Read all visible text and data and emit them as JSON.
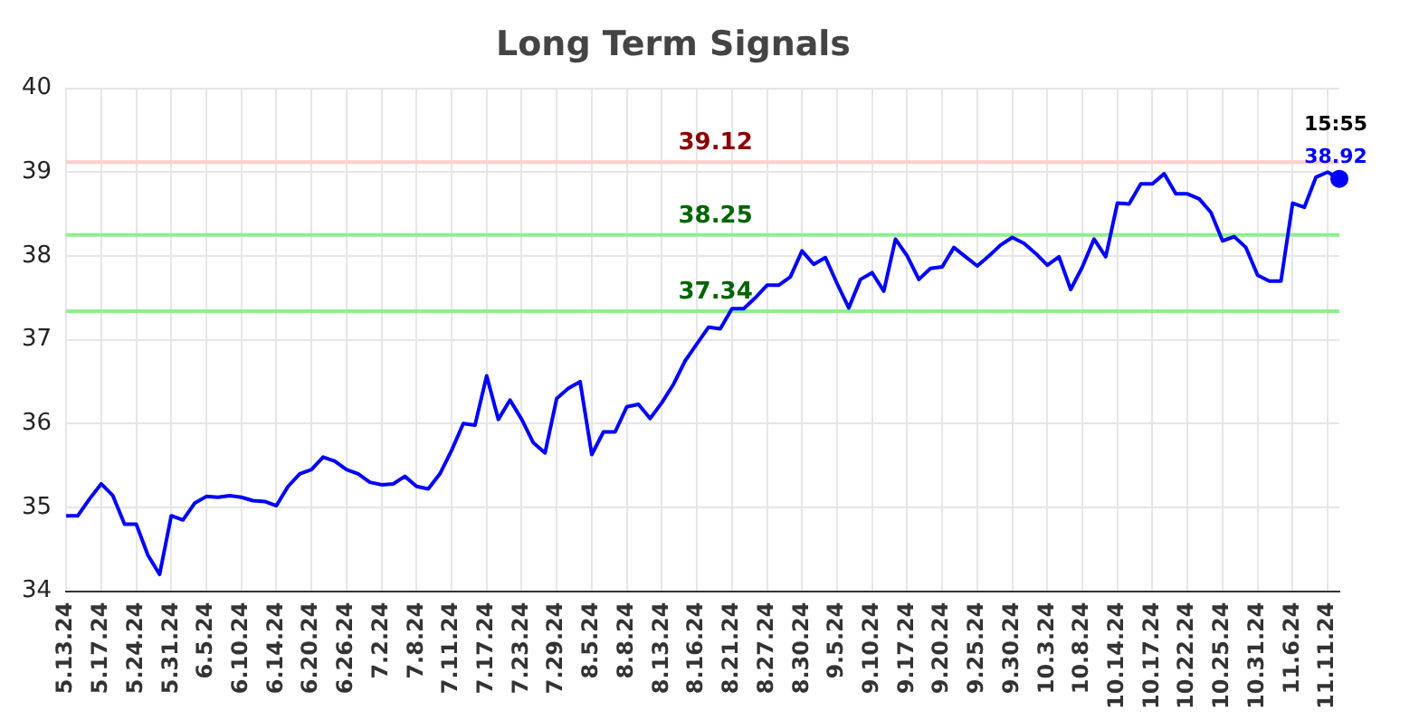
{
  "chart_data": {
    "type": "line",
    "title": "Long Term Signals",
    "categories": [
      "5.13.24",
      null,
      null,
      "5.17.24",
      null,
      null,
      "5.24.24",
      null,
      null,
      "5.31.24",
      null,
      null,
      "6.5.24",
      null,
      null,
      "6.10.24",
      null,
      null,
      "6.14.24",
      null,
      null,
      "6.20.24",
      null,
      null,
      "6.26.24",
      null,
      null,
      "7.2.24",
      null,
      null,
      "7.8.24",
      null,
      null,
      "7.11.24",
      null,
      null,
      "7.17.24",
      null,
      null,
      "7.23.24",
      null,
      null,
      "7.29.24",
      null,
      null,
      "8.5.24",
      null,
      null,
      "8.8.24",
      null,
      null,
      "8.13.24",
      null,
      null,
      "8.16.24",
      null,
      null,
      "8.21.24",
      null,
      null,
      "8.27.24",
      null,
      null,
      "8.30.24",
      null,
      null,
      "9.5.24",
      null,
      null,
      "9.10.24",
      null,
      null,
      "9.17.24",
      null,
      null,
      "9.20.24",
      null,
      null,
      "9.25.24",
      null,
      null,
      "9.30.24",
      null,
      null,
      "10.3.24",
      null,
      null,
      "10.8.24",
      null,
      null,
      "10.14.24",
      null,
      null,
      "10.17.24",
      null,
      null,
      "10.22.24",
      null,
      null,
      "10.25.24",
      null,
      null,
      "10.31.24",
      null,
      null,
      "11.6.24",
      null,
      null,
      "11.11.24",
      null
    ],
    "series": [
      {
        "color": "#0000ff",
        "values": [
          34.9,
          34.9,
          35.1,
          35.28,
          35.14,
          34.8,
          34.8,
          34.43,
          34.2,
          34.9,
          34.85,
          35.05,
          35.13,
          35.12,
          35.14,
          35.12,
          35.08,
          35.07,
          35.02,
          35.25,
          35.4,
          35.45,
          35.6,
          35.55,
          35.45,
          35.4,
          35.3,
          35.27,
          35.28,
          35.37,
          35.25,
          35.22,
          35.4,
          35.68,
          36.0,
          35.98,
          36.57,
          36.05,
          36.28,
          36.05,
          35.77,
          35.65,
          36.3,
          36.42,
          36.5,
          35.63,
          35.9,
          35.9,
          36.2,
          36.23,
          36.06,
          36.25,
          36.47,
          36.75,
          36.95,
          37.15,
          37.13,
          37.37,
          37.37,
          37.5,
          37.65,
          37.65,
          37.75,
          38.06,
          37.9,
          37.98,
          37.67,
          37.38,
          37.72,
          37.8,
          37.58,
          38.2,
          38.0,
          37.72,
          37.85,
          37.87,
          38.1,
          37.99,
          37.88,
          38.0,
          38.13,
          38.22,
          38.15,
          38.03,
          37.89,
          37.99,
          37.6,
          37.87,
          38.2,
          37.99,
          38.63,
          38.62,
          38.86,
          38.86,
          38.98,
          38.74,
          38.74,
          38.68,
          38.52,
          38.18,
          38.23,
          38.1,
          37.77,
          37.7,
          37.7,
          38.63,
          38.58,
          38.94,
          39.0,
          38.92
        ]
      }
    ],
    "ylim": [
      34,
      40
    ],
    "yticks": [
      34,
      35,
      36,
      37,
      38,
      39,
      40
    ],
    "grid": true,
    "ref_lines": [
      {
        "axis": "y",
        "value": 39.12,
        "label": "39.12",
        "color": "#ffcccc"
      },
      {
        "axis": "y",
        "value": 38.25,
        "label": "38.25",
        "color": "#90ee90"
      },
      {
        "axis": "y",
        "value": 37.34,
        "label": "37.34",
        "color": "#90ee90"
      }
    ],
    "annotations": [
      "15:55",
      {
        "text": "38.92",
        "y": 38.92
      }
    ]
  }
}
